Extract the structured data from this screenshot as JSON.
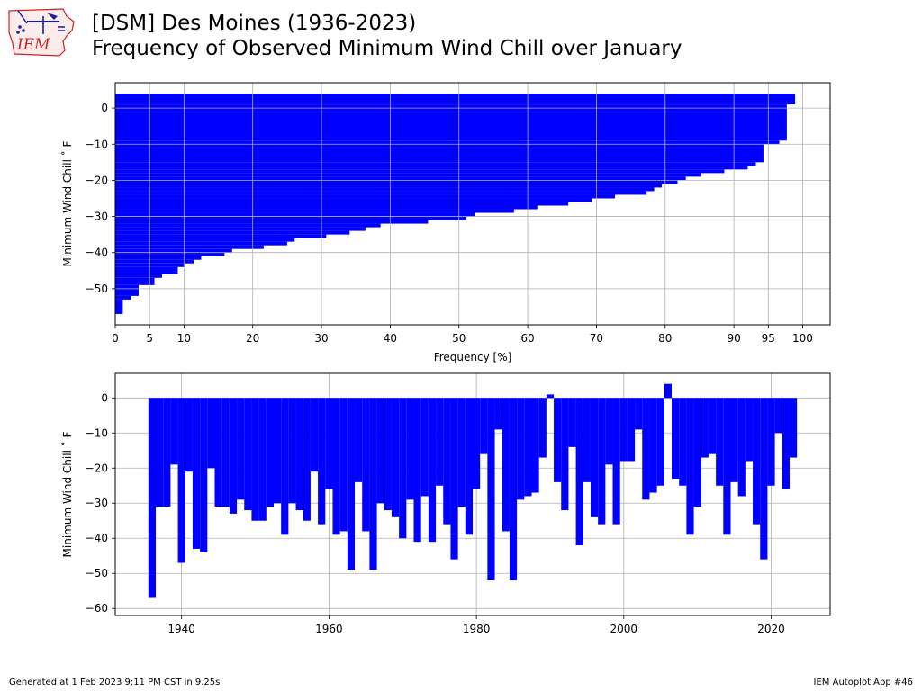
{
  "header": {
    "title_line1": "[DSM] Des Moines (1936-2023)",
    "title_line2": "Frequency of Observed Minimum Wind Chill over January",
    "logo_text": "IEM",
    "logo_icon": "iowa-state-outline-icon"
  },
  "footer": {
    "left": "Generated at 1 Feb 2023 9:11 PM CST in 9.25s",
    "right": "IEM Autoplot App #46"
  },
  "colors": {
    "bar": "#0000ff",
    "grid": "#b0b0b0",
    "logo_red": "#cc2222",
    "logo_blue": "#1a1aa0"
  },
  "chart_data": [
    {
      "type": "bar",
      "orientation": "horizontal",
      "xlabel": "Frequency [%]",
      "ylabel": "Minimum Wind Chill $^\\circ$F",
      "ylabel_display": "Minimum Wind Chill ˚ F",
      "xlim": [
        0,
        104
      ],
      "ylim": [
        -60,
        7
      ],
      "xticks": [
        0,
        5,
        10,
        20,
        30,
        40,
        50,
        60,
        70,
        80,
        90,
        95,
        100
      ],
      "yticks": [
        0,
        -10,
        -20,
        -30,
        -40,
        -50
      ],
      "grid": true,
      "bin_top": 4,
      "steps": [
        {
          "y": -57,
          "freq": 1.1
        },
        {
          "y": -53,
          "freq": 2.3
        },
        {
          "y": -52,
          "freq": 3.4
        },
        {
          "y": -49,
          "freq": 5.7
        },
        {
          "y": -47,
          "freq": 6.8
        },
        {
          "y": -46,
          "freq": 9.1
        },
        {
          "y": -44,
          "freq": 10.2
        },
        {
          "y": -43,
          "freq": 11.4
        },
        {
          "y": -42,
          "freq": 12.5
        },
        {
          "y": -41,
          "freq": 15.9
        },
        {
          "y": -40,
          "freq": 17.0
        },
        {
          "y": -39,
          "freq": 21.6
        },
        {
          "y": -38,
          "freq": 25.0
        },
        {
          "y": -37,
          "freq": 26.1
        },
        {
          "y": -36,
          "freq": 30.7
        },
        {
          "y": -35,
          "freq": 34.1
        },
        {
          "y": -34,
          "freq": 36.4
        },
        {
          "y": -33,
          "freq": 38.6
        },
        {
          "y": -32,
          "freq": 45.5
        },
        {
          "y": -31,
          "freq": 51.1
        },
        {
          "y": -30,
          "freq": 52.3
        },
        {
          "y": -29,
          "freq": 58.0
        },
        {
          "y": -28,
          "freq": 61.4
        },
        {
          "y": -27,
          "freq": 65.9
        },
        {
          "y": -26,
          "freq": 69.3
        },
        {
          "y": -25,
          "freq": 72.7
        },
        {
          "y": -24,
          "freq": 77.3
        },
        {
          "y": -23,
          "freq": 78.4
        },
        {
          "y": -22,
          "freq": 79.5
        },
        {
          "y": -21,
          "freq": 81.8
        },
        {
          "y": -20,
          "freq": 83.0
        },
        {
          "y": -19,
          "freq": 85.2
        },
        {
          "y": -18,
          "freq": 88.6
        },
        {
          "y": -17,
          "freq": 92.0
        },
        {
          "y": -16,
          "freq": 93.2
        },
        {
          "y": -15,
          "freq": 94.3
        },
        {
          "y": -10,
          "freq": 96.6
        },
        {
          "y": -9,
          "freq": 97.7
        },
        {
          "y": 1,
          "freq": 98.9
        }
      ]
    },
    {
      "type": "bar",
      "orientation": "vertical",
      "xlabel": "",
      "ylabel": "Minimum Wind Chill $^\\circ$F",
      "ylabel_display": "Minimum Wind Chill ˚ F",
      "xlim": [
        1931,
        2028
      ],
      "ylim": [
        -62,
        7
      ],
      "xticks": [
        1940,
        1960,
        1980,
        2000,
        2020
      ],
      "yticks": [
        0,
        -10,
        -20,
        -30,
        -40,
        -50,
        -60
      ],
      "grid": true,
      "years": [
        1936,
        1937,
        1938,
        1939,
        1940,
        1941,
        1942,
        1943,
        1944,
        1945,
        1946,
        1947,
        1948,
        1949,
        1950,
        1951,
        1952,
        1953,
        1954,
        1955,
        1956,
        1957,
        1958,
        1959,
        1960,
        1961,
        1962,
        1963,
        1964,
        1965,
        1966,
        1967,
        1968,
        1969,
        1970,
        1971,
        1972,
        1973,
        1974,
        1975,
        1976,
        1977,
        1978,
        1979,
        1980,
        1981,
        1982,
        1983,
        1984,
        1985,
        1986,
        1987,
        1988,
        1989,
        1990,
        1991,
        1992,
        1993,
        1994,
        1995,
        1996,
        1997,
        1998,
        1999,
        2000,
        2001,
        2002,
        2003,
        2004,
        2005,
        2006,
        2007,
        2008,
        2009,
        2010,
        2011,
        2012,
        2013,
        2014,
        2015,
        2016,
        2017,
        2018,
        2019,
        2020,
        2021,
        2022,
        2023
      ],
      "values": [
        -57,
        -31,
        -31,
        -19,
        -47,
        -21,
        -43,
        -44,
        -20,
        -31,
        -31,
        -33,
        -29,
        -32,
        -35,
        -35,
        -31,
        -30,
        -39,
        -30,
        -32,
        -35,
        -21,
        -36,
        -26,
        -39,
        -38,
        -49,
        -24,
        -38,
        -49,
        -30,
        -32,
        -34,
        -40,
        -29,
        -41,
        -28,
        -41,
        -25,
        -36,
        -46,
        -31,
        -39,
        -26,
        -16,
        -52,
        -9,
        -38,
        -52,
        -29,
        -28,
        -27,
        -17,
        1,
        -24,
        -32,
        -14,
        -42,
        -24,
        -34,
        -36,
        -19,
        -36,
        -18,
        -18,
        -9,
        -29,
        -27,
        -25,
        4,
        -23,
        -25,
        -39,
        -31,
        -17,
        -16,
        -25,
        -39,
        -24,
        -28,
        -18,
        -36,
        -46,
        -25,
        -10,
        -26,
        -17
      ]
    }
  ]
}
